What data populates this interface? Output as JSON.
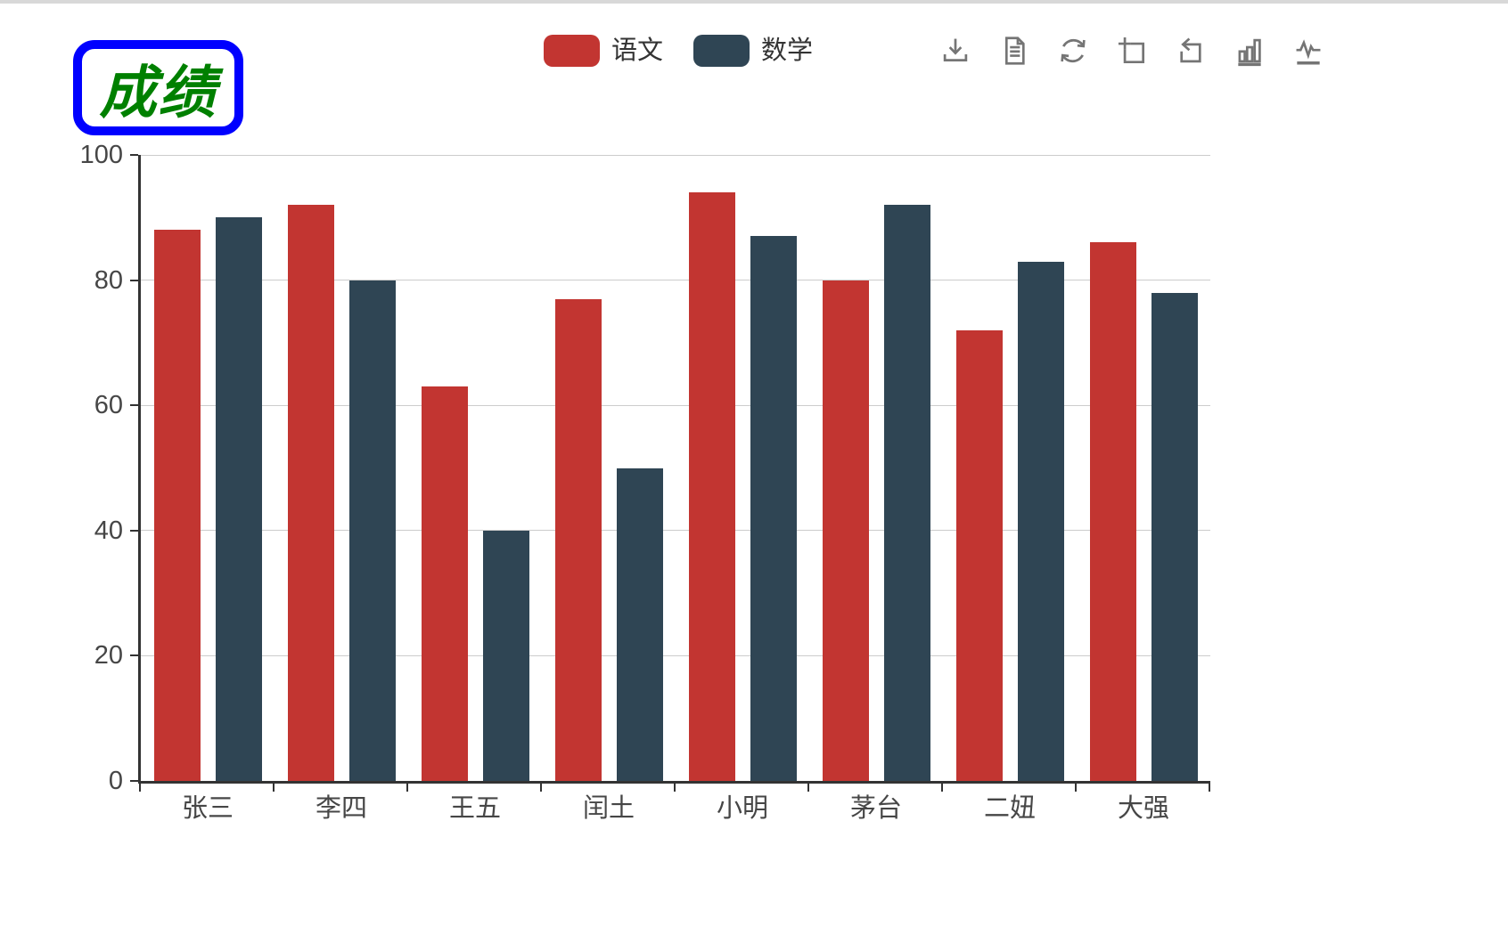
{
  "title": {
    "text": "成绩",
    "text_color": "#008000",
    "border_color": "#0000ff"
  },
  "legend": {
    "items": [
      {
        "label": "语文",
        "color": "#c23531"
      },
      {
        "label": "数学",
        "color": "#2f4554"
      }
    ]
  },
  "toolbox": {
    "icon_color": "#757575",
    "icons": [
      {
        "name": "save-as-image-icon"
      },
      {
        "name": "data-view-icon"
      },
      {
        "name": "restore-icon"
      },
      {
        "name": "data-zoom-icon"
      },
      {
        "name": "data-zoom-reset-icon"
      },
      {
        "name": "switch-to-bar-icon"
      },
      {
        "name": "switch-to-line-icon"
      }
    ]
  },
  "axis": {
    "label_color": "#464646",
    "line_color": "#333333",
    "grid_color": "#cccccc"
  },
  "chart_data": {
    "type": "bar",
    "title": "成绩",
    "categories": [
      "张三",
      "李四",
      "王五",
      "闰土",
      "小明",
      "茅台",
      "二妞",
      "大强"
    ],
    "series": [
      {
        "name": "语文",
        "color": "#c23531",
        "values": [
          88,
          92,
          63,
          77,
          94,
          80,
          72,
          86
        ]
      },
      {
        "name": "数学",
        "color": "#2f4554",
        "values": [
          90,
          80,
          40,
          50,
          87,
          92,
          83,
          78
        ]
      }
    ],
    "xlabel": "",
    "ylabel": "",
    "ylim": [
      0,
      100
    ],
    "yticks": [
      0,
      20,
      40,
      60,
      80,
      100
    ],
    "grid": true,
    "legend_position": "top-center"
  }
}
